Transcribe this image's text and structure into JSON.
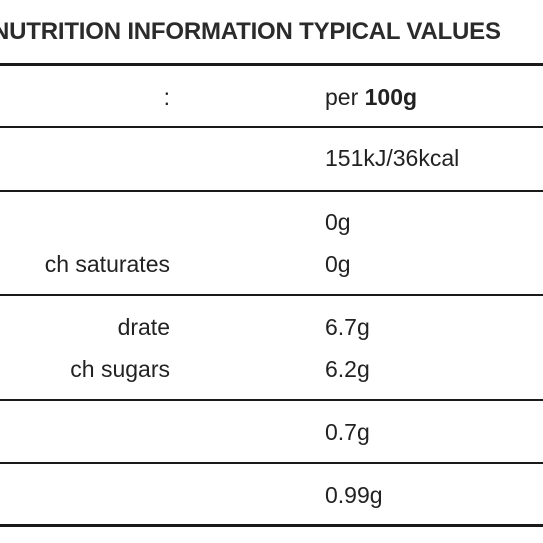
{
  "header": {
    "title": "NUTRITION INFORMATION TYPICAL VALUES"
  },
  "rows": {
    "per": {
      "label": ":",
      "value_prefix": "per",
      "value_bold": "100g"
    },
    "energy": {
      "value": "151kJ/36kcal"
    },
    "fat": {
      "value": "0g"
    },
    "saturates": {
      "label": "ch saturates",
      "value": "0g"
    },
    "carbohydrate": {
      "label": "drate",
      "value": "6.7g"
    },
    "sugars": {
      "label": "ch sugars",
      "value": "6.2g"
    },
    "protein": {
      "value": "0.7g"
    },
    "salt": {
      "value": "0.99g"
    }
  }
}
